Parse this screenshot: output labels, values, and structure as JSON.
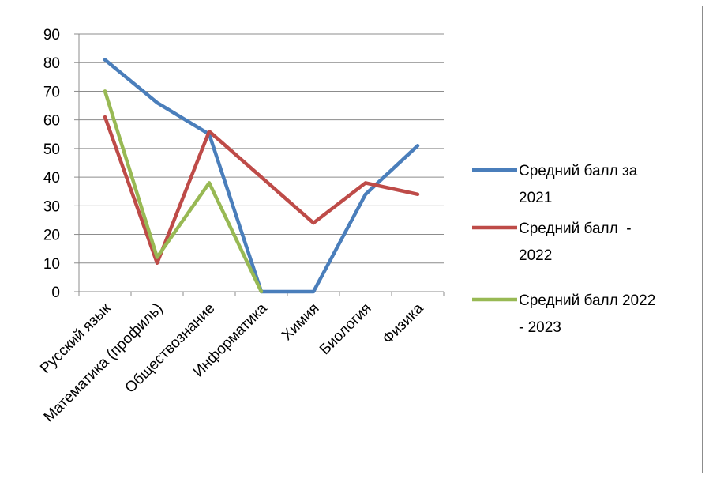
{
  "chart_data": {
    "type": "line",
    "categories": [
      "Русский язык",
      "Математика (профиль)",
      "Обществознание",
      "Информатика",
      "Химия",
      "Биология",
      "Физика"
    ],
    "series": [
      {
        "name": "Средний балл за 2021",
        "legend_lines": [
          "Средний балл за",
          "2021"
        ],
        "color": "#4a7ebb",
        "values": [
          81,
          66,
          55,
          0,
          0,
          34,
          51
        ]
      },
      {
        "name": "Средний балл - 2022",
        "legend_lines": [
          "Средний балл  -",
          "2022"
        ],
        "color": "#be4b48",
        "values": [
          61,
          10,
          56,
          40,
          24,
          38,
          34
        ]
      },
      {
        "name": "Средний балл 2022 - 2023",
        "legend_lines": [
          "Средний балл 2022",
          "- 2023"
        ],
        "color": "#98b954",
        "values": [
          70,
          12,
          38,
          0,
          null,
          null,
          null
        ]
      }
    ],
    "y_ticks": [
      0,
      10,
      20,
      30,
      40,
      50,
      60,
      70,
      80,
      90
    ],
    "ylim": [
      0,
      90
    ],
    "grid": true,
    "legend_position": "right",
    "title": "",
    "xlabel": "",
    "ylabel": ""
  }
}
